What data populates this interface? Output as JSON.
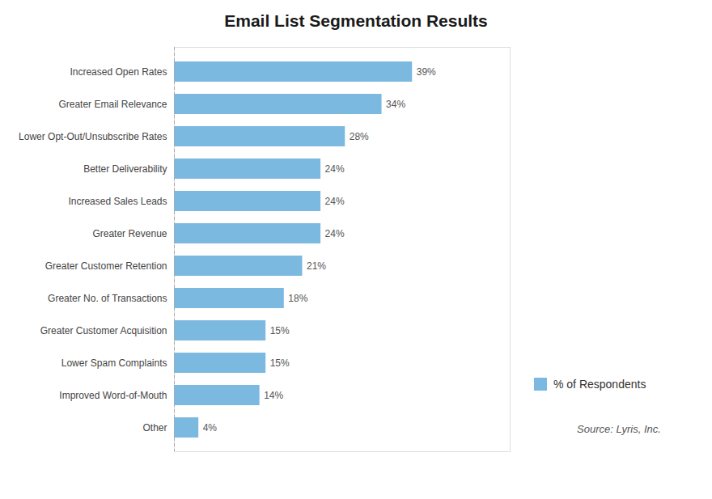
{
  "chart_data": {
    "type": "bar",
    "orientation": "horizontal",
    "title": "Email List Segmentation Results",
    "categories": [
      "Other",
      "Improved Word-of-Mouth",
      "Lower Spam Complaints",
      "Greater Customer Acquisition",
      "Greater No. of Transactions",
      "Greater Customer Retention",
      "Greater Revenue",
      "Increased Sales Leads",
      "Better Deliverability",
      "Lower Opt-Out/Unsubscribe Rates",
      "Greater Email Relevance",
      "Increased Open Rates"
    ],
    "series": [
      {
        "name": "% of Respondents",
        "color": "#7CB9E0",
        "values": [
          4,
          14,
          15,
          15,
          18,
          21,
          24,
          24,
          24,
          28,
          34,
          39
        ],
        "value_labels": [
          "4%",
          "14%",
          "15%",
          "15%",
          "18%",
          "21%",
          "24%",
          "24%",
          "24%",
          "28%",
          "34%",
          "39%"
        ]
      }
    ],
    "xlim": [
      0,
      55
    ],
    "data_labels": true,
    "tick_labels": "y",
    "grid": false,
    "legend": "right",
    "annotations": [
      "Source: Lyris, Inc."
    ]
  }
}
